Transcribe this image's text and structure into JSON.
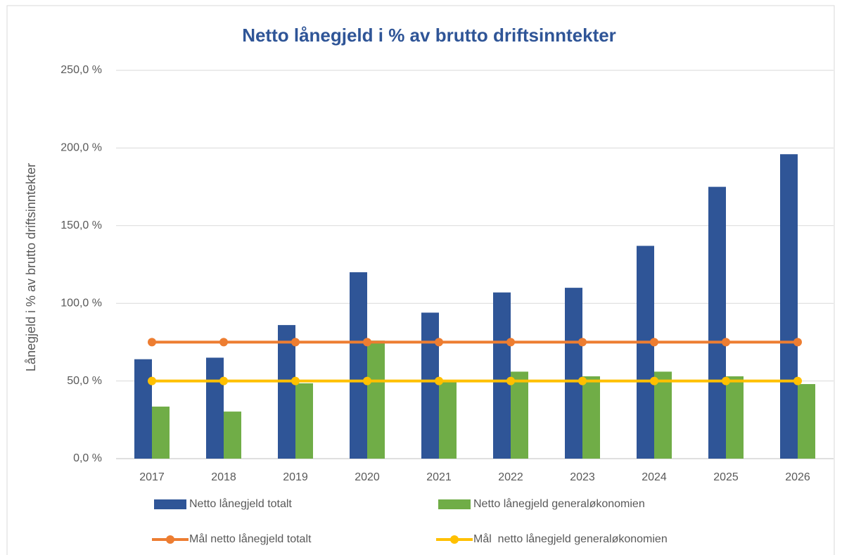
{
  "chart_data": {
    "type": "bar",
    "title": "Netto lånegjeld i % av brutto driftsinntekter",
    "y_label": "Lånegjeld i % av brutto driftsinntekter",
    "categories": [
      "2017",
      "2018",
      "2019",
      "2020",
      "2021",
      "2022",
      "2023",
      "2024",
      "2025",
      "2026"
    ],
    "series": [
      {
        "name": "Netto lånegjeld totalt",
        "type": "bar",
        "color": "#2f5597",
        "values": [
          64,
          65,
          86,
          120,
          94,
          107,
          110,
          137,
          175,
          196
        ]
      },
      {
        "name": "Netto lånegjeld generaløkonomien",
        "type": "bar",
        "color": "#70ad47",
        "values": [
          33.5,
          30.3,
          48.5,
          76,
          50,
          56,
          53,
          56,
          53,
          48
        ]
      },
      {
        "name": "Mål netto lånegjeld totalt",
        "type": "line",
        "color": "#ed7d31",
        "values": [
          75,
          75,
          75,
          75,
          75,
          75,
          75,
          75,
          75,
          75
        ]
      },
      {
        "name": "Mål  netto lånegjeld generaløkonomien",
        "type": "line",
        "color": "#ffc000",
        "values": [
          50,
          50,
          50,
          50,
          50,
          50,
          50,
          50,
          50,
          50
        ]
      }
    ],
    "ylim": [
      0,
      250
    ],
    "yticks": [
      {
        "value": 0,
        "label": "0,0 %"
      },
      {
        "value": 50,
        "label": "50,0 %"
      },
      {
        "value": 100,
        "label": "100,0 %"
      },
      {
        "value": 150,
        "label": "150,0 %"
      },
      {
        "value": 200,
        "label": "200,0 %"
      },
      {
        "value": 250,
        "label": "250,0 %"
      }
    ],
    "grid": true
  }
}
